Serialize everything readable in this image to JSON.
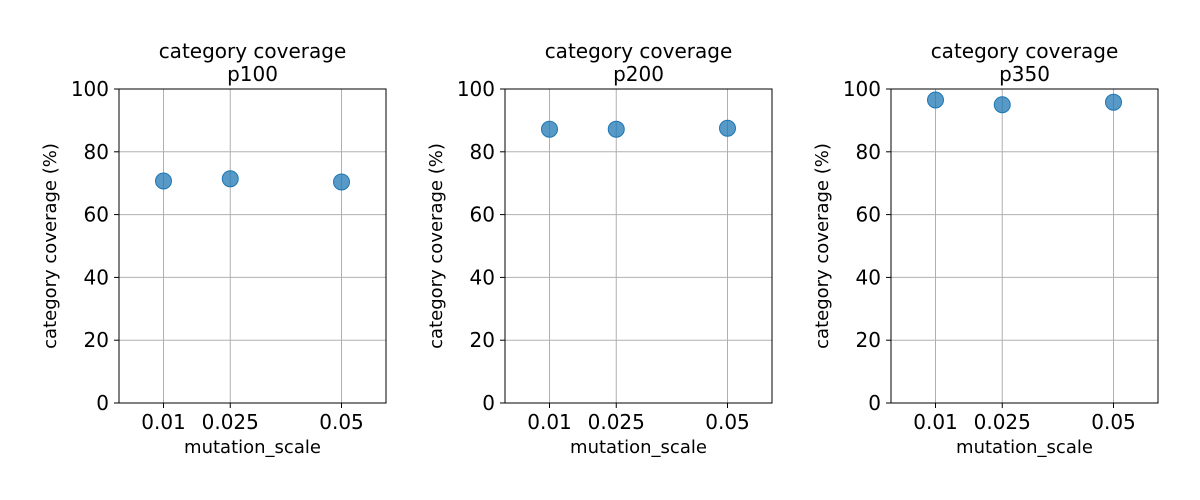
{
  "colors": {
    "marker": "#1f77b4",
    "grid": "#b0b0b0",
    "axes": "#000000",
    "background": "#ffffff"
  },
  "chart_data": [
    {
      "type": "scatter",
      "title": "category coverage",
      "subtitle": "p100",
      "xlabel": "mutation_scale",
      "ylabel": "category coverage (%)",
      "x": [
        0.01,
        0.025,
        0.05
      ],
      "x_tick_labels": [
        "0.01",
        "0.025",
        "0.05"
      ],
      "y": [
        70.7,
        71.4,
        70.4
      ],
      "xlim": [
        0,
        0.06
      ],
      "ylim": [
        0,
        100
      ],
      "y_ticks": [
        0,
        20,
        40,
        60,
        80,
        100
      ],
      "y_tick_labels": [
        "0",
        "20",
        "40",
        "60",
        "80",
        "100"
      ],
      "grid": true
    },
    {
      "type": "scatter",
      "title": "category coverage",
      "subtitle": "p200",
      "xlabel": "mutation_scale",
      "ylabel": "category coverage (%)",
      "x": [
        0.01,
        0.025,
        0.05
      ],
      "x_tick_labels": [
        "0.01",
        "0.025",
        "0.05"
      ],
      "y": [
        87.2,
        87.2,
        87.5
      ],
      "xlim": [
        0,
        0.06
      ],
      "ylim": [
        0,
        100
      ],
      "y_ticks": [
        0,
        20,
        40,
        60,
        80,
        100
      ],
      "y_tick_labels": [
        "0",
        "20",
        "40",
        "60",
        "80",
        "100"
      ],
      "grid": true
    },
    {
      "type": "scatter",
      "title": "category coverage",
      "subtitle": "p350",
      "xlabel": "mutation_scale",
      "ylabel": "category coverage (%)",
      "x": [
        0.01,
        0.025,
        0.05
      ],
      "x_tick_labels": [
        "0.01",
        "0.025",
        "0.05"
      ],
      "y": [
        96.5,
        95.0,
        95.8
      ],
      "xlim": [
        0,
        0.06
      ],
      "ylim": [
        0,
        100
      ],
      "y_ticks": [
        0,
        20,
        40,
        60,
        80,
        100
      ],
      "y_tick_labels": [
        "0",
        "20",
        "40",
        "60",
        "80",
        "100"
      ],
      "grid": true
    }
  ]
}
